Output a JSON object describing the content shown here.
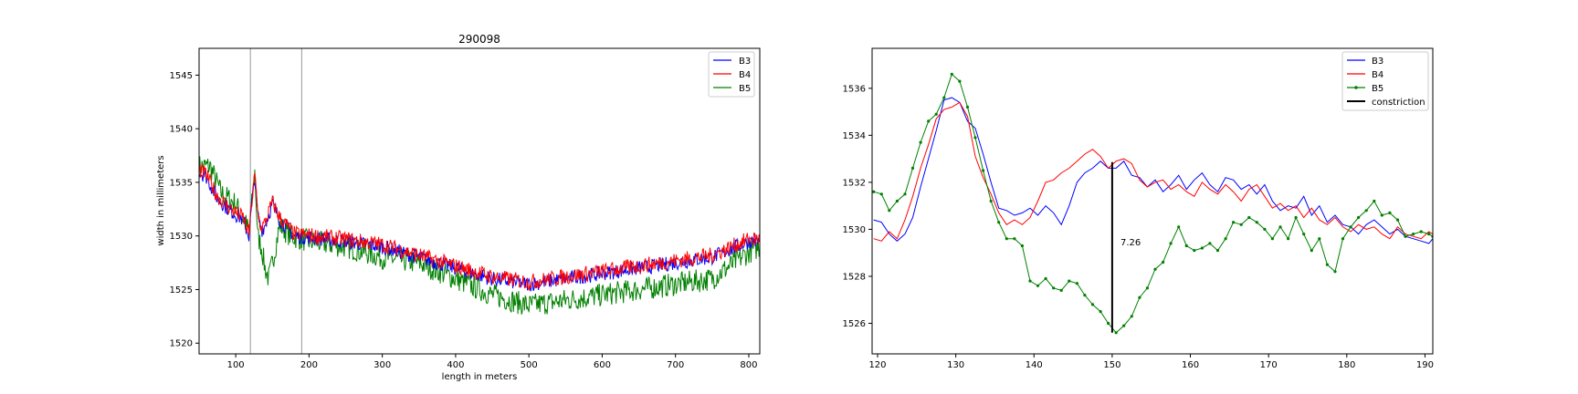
{
  "colors": {
    "B3": "#0000ff",
    "B4": "#ff0000",
    "B5": "#008000",
    "constriction": "#000000",
    "vline": "#999999"
  },
  "chart_data": [
    {
      "type": "line",
      "title": "290098",
      "xlabel": "length in meters",
      "ylabel": "width in millimeters",
      "xlim": [
        50,
        815
      ],
      "ylim": [
        1519,
        1547.5
      ],
      "xticks": [
        100,
        200,
        300,
        400,
        500,
        600,
        700,
        800
      ],
      "yticks": [
        1520,
        1525,
        1530,
        1535,
        1540,
        1545
      ],
      "vlines": [
        120,
        190
      ],
      "legend": {
        "placement": "top-right",
        "entries": [
          "B3",
          "B4",
          "B5"
        ]
      },
      "series_profile": {
        "x_step": 1,
        "B3_anchors": [
          [
            50,
            1536
          ],
          [
            60,
            1535.5
          ],
          [
            75,
            1533.5
          ],
          [
            90,
            1532.5
          ],
          [
            110,
            1531.5
          ],
          [
            118,
            1530
          ],
          [
            122,
            1533
          ],
          [
            126,
            1535.5
          ],
          [
            130,
            1532
          ],
          [
            135,
            1530.5
          ],
          [
            140,
            1531
          ],
          [
            150,
            1533
          ],
          [
            160,
            1531.5
          ],
          [
            180,
            1530
          ],
          [
            250,
            1529.5
          ],
          [
            300,
            1529
          ],
          [
            350,
            1528
          ],
          [
            400,
            1527
          ],
          [
            450,
            1526
          ],
          [
            500,
            1525.5
          ],
          [
            550,
            1526
          ],
          [
            600,
            1526.5
          ],
          [
            650,
            1527
          ],
          [
            700,
            1527.5
          ],
          [
            750,
            1528
          ],
          [
            800,
            1529.5
          ],
          [
            815,
            1529.5
          ]
        ],
        "B4_offset": 0.2,
        "B5_anchors": [
          [
            50,
            1536.5
          ],
          [
            65,
            1536.5
          ],
          [
            80,
            1534
          ],
          [
            100,
            1533
          ],
          [
            118,
            1530.5
          ],
          [
            122,
            1533
          ],
          [
            126,
            1536
          ],
          [
            130,
            1530
          ],
          [
            135,
            1529
          ],
          [
            140,
            1527
          ],
          [
            145,
            1526
          ],
          [
            150,
            1527.5
          ],
          [
            160,
            1531
          ],
          [
            175,
            1530
          ],
          [
            200,
            1529.5
          ],
          [
            250,
            1529
          ],
          [
            300,
            1528
          ],
          [
            350,
            1527.5
          ],
          [
            400,
            1526
          ],
          [
            450,
            1524.5
          ],
          [
            500,
            1523.5
          ],
          [
            550,
            1524
          ],
          [
            600,
            1524.5
          ],
          [
            650,
            1525
          ],
          [
            700,
            1525.5
          ],
          [
            750,
            1526
          ],
          [
            800,
            1528.5
          ],
          [
            815,
            1529
          ]
        ]
      }
    },
    {
      "type": "line",
      "title": "",
      "xlabel": "",
      "ylabel": "",
      "xlim": [
        119.3,
        191
      ],
      "ylim": [
        1524.7,
        1537.7
      ],
      "xticks": [
        120,
        130,
        140,
        150,
        160,
        170,
        180,
        190
      ],
      "yticks": [
        1526,
        1528,
        1530,
        1532,
        1534,
        1536
      ],
      "legend": {
        "placement": "top-right",
        "entries": [
          "B3",
          "B4",
          "B5",
          "constriction"
        ]
      },
      "constriction": {
        "x": 150,
        "y_low": 1525.6,
        "y_high": 1532.86,
        "label": "7.26"
      },
      "series": [
        {
          "name": "B3",
          "x": [
            119.5,
            120.5,
            121.5,
            122.5,
            123.5,
            124.5,
            125.5,
            126.5,
            127.5,
            128.5,
            129.5,
            130.5,
            131.5,
            132.5,
            133.5,
            134.5,
            135.5,
            136.5,
            137.5,
            138.5,
            139.5,
            140.5,
            141.5,
            142.5,
            143.5,
            144.5,
            145.5,
            146.5,
            147.5,
            148.5,
            149.5,
            150.5,
            151.5,
            152.5,
            153.5,
            154.5,
            155.5,
            156.5,
            157.5,
            158.5,
            159.5,
            160.5,
            161.5,
            162.5,
            163.5,
            164.5,
            165.5,
            166.5,
            167.5,
            168.5,
            169.5,
            170.5,
            171.5,
            172.5,
            173.5,
            174.5,
            175.5,
            176.5,
            177.5,
            178.5,
            179.5,
            180.5,
            181.5,
            182.5,
            183.5,
            184.5,
            185.5,
            186.5,
            187.5,
            188.5,
            189.5,
            190.5,
            191
          ],
          "y": [
            1530.4,
            1530.3,
            1529.8,
            1529.5,
            1529.8,
            1530.5,
            1531.8,
            1533,
            1534.2,
            1535.5,
            1535.6,
            1535.4,
            1534.6,
            1534.3,
            1533.2,
            1532,
            1530.9,
            1530.8,
            1530.6,
            1530.7,
            1530.9,
            1530.6,
            1531,
            1530.7,
            1530.2,
            1531,
            1532,
            1532.4,
            1532.6,
            1532.9,
            1532.6,
            1532.6,
            1532.9,
            1532.3,
            1532.2,
            1531.8,
            1532.1,
            1531.6,
            1531.9,
            1532.3,
            1531.7,
            1532.1,
            1532.4,
            1531.9,
            1531.6,
            1532.2,
            1532.1,
            1531.7,
            1531.9,
            1531.5,
            1531.9,
            1531.2,
            1530.8,
            1531,
            1530.9,
            1531.4,
            1530.6,
            1531,
            1530.3,
            1530.6,
            1530.2,
            1530.1,
            1529.8,
            1530.2,
            1530.4,
            1530.1,
            1529.8,
            1530,
            1529.7,
            1529.6,
            1529.5,
            1529.4,
            1529.6
          ]
        },
        {
          "name": "B4",
          "x": [
            119.5,
            120.5,
            121.5,
            122.5,
            123.5,
            124.5,
            125.5,
            126.5,
            127.5,
            128.5,
            129.5,
            130.5,
            131.5,
            132.5,
            133.5,
            134.5,
            135.5,
            136.5,
            137.5,
            138.5,
            139.5,
            140.5,
            141.5,
            142.5,
            143.5,
            144.5,
            145.5,
            146.5,
            147.5,
            148.5,
            149.5,
            150.5,
            151.5,
            152.5,
            153.5,
            154.5,
            155.5,
            156.5,
            157.5,
            158.5,
            159.5,
            160.5,
            161.5,
            162.5,
            163.5,
            164.5,
            165.5,
            166.5,
            167.5,
            168.5,
            169.5,
            170.5,
            171.5,
            172.5,
            173.5,
            174.5,
            175.5,
            176.5,
            177.5,
            178.5,
            179.5,
            180.5,
            181.5,
            182.5,
            183.5,
            184.5,
            185.5,
            186.5,
            187.5,
            188.5,
            189.5,
            190.5,
            191
          ],
          "y": [
            1529.6,
            1529.5,
            1529.9,
            1529.6,
            1530.4,
            1531.4,
            1532.6,
            1533.6,
            1534.7,
            1535.1,
            1535.2,
            1535.4,
            1534.8,
            1533.1,
            1532.2,
            1531.5,
            1530.7,
            1530.2,
            1530.4,
            1530.2,
            1530.5,
            1531.2,
            1532,
            1532.1,
            1532.4,
            1532.6,
            1532.9,
            1533.2,
            1533.4,
            1533.1,
            1532.6,
            1532.9,
            1533,
            1532.8,
            1532.1,
            1531.8,
            1532,
            1532.1,
            1531.7,
            1531.9,
            1531.6,
            1531.4,
            1532,
            1531.7,
            1531.5,
            1531.9,
            1531.6,
            1531.2,
            1531.7,
            1531.9,
            1531.4,
            1530.9,
            1531.1,
            1530.8,
            1531,
            1530.5,
            1530.9,
            1530.4,
            1530.2,
            1530.5,
            1530.1,
            1529.9,
            1530.2,
            1530,
            1530.1,
            1529.8,
            1529.6,
            1530.1,
            1529.8,
            1529.7,
            1529.6,
            1529.9,
            1529.8
          ]
        },
        {
          "name": "B5",
          "x": [
            119.5,
            120.5,
            121.5,
            122.5,
            123.5,
            124.5,
            125.5,
            126.5,
            127.5,
            128.5,
            129.5,
            130.5,
            131.5,
            132.5,
            133.5,
            134.5,
            135.5,
            136.5,
            137.5,
            138.5,
            139.5,
            140.5,
            141.5,
            142.5,
            143.5,
            144.5,
            145.5,
            146.5,
            147.5,
            148.5,
            149.5,
            150.5,
            151.5,
            152.5,
            153.5,
            154.5,
            155.5,
            156.5,
            157.5,
            158.5,
            159.5,
            160.5,
            161.5,
            162.5,
            163.5,
            164.5,
            165.5,
            166.5,
            167.5,
            168.5,
            169.5,
            170.5,
            171.5,
            172.5,
            173.5,
            174.5,
            175.5,
            176.5,
            177.5,
            178.5,
            179.5,
            180.5,
            181.5,
            182.5,
            183.5,
            184.5,
            185.5,
            186.5,
            187.5,
            188.5,
            189.5,
            190.5,
            191
          ],
          "y": [
            1531.6,
            1531.5,
            1530.8,
            1531.2,
            1531.5,
            1532.6,
            1533.7,
            1534.6,
            1534.9,
            1535.6,
            1536.6,
            1536.3,
            1535.2,
            1533.9,
            1532.5,
            1531.2,
            1530.3,
            1529.6,
            1529.6,
            1529.3,
            1527.8,
            1527.6,
            1527.9,
            1527.5,
            1527.4,
            1527.8,
            1527.7,
            1527.2,
            1526.8,
            1526.5,
            1526,
            1525.6,
            1525.9,
            1526.3,
            1527.1,
            1527.5,
            1528.3,
            1528.6,
            1529.4,
            1530.1,
            1529.3,
            1529.1,
            1529.2,
            1529.4,
            1529.1,
            1529.6,
            1530.3,
            1530.2,
            1530.5,
            1530.3,
            1530,
            1529.6,
            1530.1,
            1529.6,
            1530.5,
            1529.8,
            1529.1,
            1529.6,
            1528.5,
            1528.2,
            1529.6,
            1530.1,
            1530.5,
            1530.8,
            1531.2,
            1530.6,
            1530.7,
            1530.4,
            1529.7,
            1529.8,
            1529.9,
            1529.8,
            1529.7
          ]
        }
      ]
    }
  ]
}
